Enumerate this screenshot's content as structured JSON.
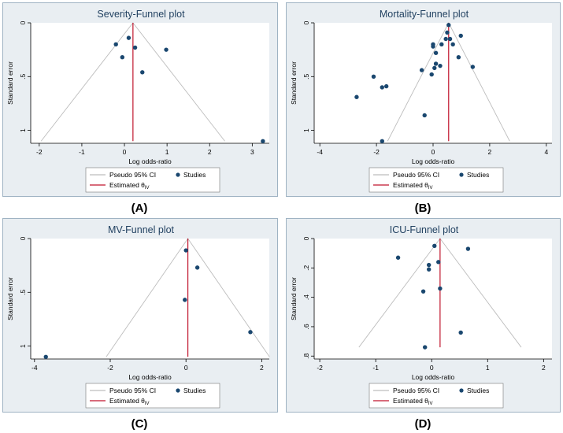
{
  "colors": {
    "panel_bg": "#e9eef2",
    "plot_bg": "#ffffff",
    "title": "#1f3f5f",
    "point": "#1a476f",
    "ci_line": "#bdbdbd",
    "estimate_line": "#c0142c",
    "border": "#9fb3c3"
  },
  "legend": {
    "ci_label": "Pseudo 95% CI",
    "studies_label": "Studies",
    "estimate_label": "Estimated θ",
    "estimate_subscript": "IV"
  },
  "panel_labels": [
    "(A)",
    "(B)",
    "(C)",
    "(D)"
  ],
  "chart_data": [
    {
      "type": "scatter",
      "title": "Severity-Funnel plot",
      "xlabel": "Log odds-ratio",
      "ylabel": "Standard error",
      "xlim": [
        -2.2,
        3.4
      ],
      "ylim": [
        0,
        1.12
      ],
      "xticks": [
        -2,
        -1,
        0,
        1,
        2,
        3
      ],
      "yticks": [
        0,
        0.5,
        1
      ],
      "ytick_labels": [
        "0",
        ".5",
        "1"
      ],
      "theta": 0.2,
      "ci_se_max": 1.1,
      "points": [
        {
          "x": 0.1,
          "y": 0.14
        },
        {
          "x": -0.2,
          "y": 0.2
        },
        {
          "x": 0.25,
          "y": 0.23
        },
        {
          "x": -0.05,
          "y": 0.32
        },
        {
          "x": 0.98,
          "y": 0.25
        },
        {
          "x": 0.42,
          "y": 0.46
        },
        {
          "x": 3.25,
          "y": 1.1
        }
      ]
    },
    {
      "type": "scatter",
      "title": "Mortality-Funnel plot",
      "xlabel": "Log odds-ratio",
      "ylabel": "Standard error",
      "xlim": [
        -4.2,
        4.2
      ],
      "ylim": [
        0,
        1.12
      ],
      "xticks": [
        -4,
        -2,
        0,
        2,
        4
      ],
      "yticks": [
        0,
        0.5,
        1
      ],
      "ytick_labels": [
        "0",
        ".5",
        "1"
      ],
      "theta": 0.55,
      "ci_se_max": 1.1,
      "points": [
        {
          "x": 0.55,
          "y": 0.02
        },
        {
          "x": 0.5,
          "y": 0.09
        },
        {
          "x": 0.98,
          "y": 0.12
        },
        {
          "x": 0.6,
          "y": 0.15
        },
        {
          "x": 0.45,
          "y": 0.15
        },
        {
          "x": 0.3,
          "y": 0.2
        },
        {
          "x": 0.7,
          "y": 0.2
        },
        {
          "x": 0.0,
          "y": 0.2
        },
        {
          "x": 0.0,
          "y": 0.22
        },
        {
          "x": 0.1,
          "y": 0.28
        },
        {
          "x": 0.9,
          "y": 0.32
        },
        {
          "x": 0.1,
          "y": 0.38
        },
        {
          "x": 0.25,
          "y": 0.4
        },
        {
          "x": 0.05,
          "y": 0.42
        },
        {
          "x": -0.4,
          "y": 0.44
        },
        {
          "x": 1.4,
          "y": 0.41
        },
        {
          "x": -0.05,
          "y": 0.48
        },
        {
          "x": -2.1,
          "y": 0.5
        },
        {
          "x": -1.8,
          "y": 0.6
        },
        {
          "x": -1.65,
          "y": 0.59
        },
        {
          "x": -2.7,
          "y": 0.69
        },
        {
          "x": -0.3,
          "y": 0.86
        },
        {
          "x": -1.8,
          "y": 1.1
        }
      ]
    },
    {
      "type": "scatter",
      "title": "MV-Funnel plot",
      "xlabel": "Log odds-ratio",
      "ylabel": "Standard error",
      "xlim": [
        -4.1,
        2.2
      ],
      "ylim": [
        0,
        1.12
      ],
      "xticks": [
        -4,
        -2,
        0,
        2
      ],
      "yticks": [
        0,
        0.5,
        1
      ],
      "ytick_labels": [
        "0",
        ".5",
        "1"
      ],
      "theta": 0.05,
      "ci_se_max": 1.1,
      "points": [
        {
          "x": 0.0,
          "y": 0.11
        },
        {
          "x": 0.3,
          "y": 0.27
        },
        {
          "x": -0.03,
          "y": 0.57
        },
        {
          "x": 1.7,
          "y": 0.87
        },
        {
          "x": -3.7,
          "y": 1.1
        }
      ]
    },
    {
      "type": "scatter",
      "title": "ICU-Funnel plot",
      "xlabel": "Log odds-ratio",
      "ylabel": "Standard error",
      "xlim": [
        -2.1,
        2.15
      ],
      "ylim": [
        0,
        0.82
      ],
      "xticks": [
        -2,
        -1,
        0,
        1,
        2
      ],
      "yticks": [
        0,
        0.2,
        0.4,
        0.6,
        0.8
      ],
      "ytick_labels": [
        "0",
        ".2",
        ".4",
        ".6",
        ".8"
      ],
      "theta": 0.15,
      "ci_se_max": 0.74,
      "points": [
        {
          "x": 0.05,
          "y": 0.05
        },
        {
          "x": 0.65,
          "y": 0.07
        },
        {
          "x": -0.6,
          "y": 0.13
        },
        {
          "x": 0.12,
          "y": 0.16
        },
        {
          "x": -0.05,
          "y": 0.18
        },
        {
          "x": -0.05,
          "y": 0.21
        },
        {
          "x": 0.15,
          "y": 0.34
        },
        {
          "x": -0.15,
          "y": 0.36
        },
        {
          "x": 0.52,
          "y": 0.64
        },
        {
          "x": -0.12,
          "y": 0.74
        }
      ]
    }
  ]
}
